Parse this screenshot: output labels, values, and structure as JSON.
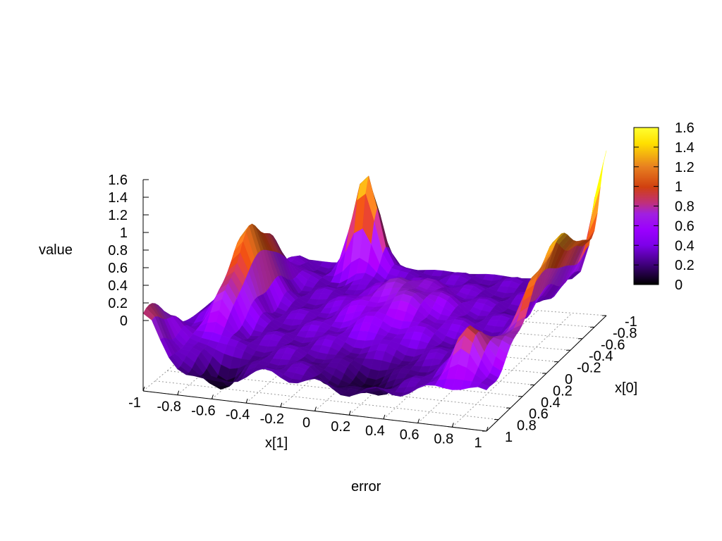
{
  "chart_data": {
    "type": "surface3d",
    "title": "error",
    "xlabel": "x[1]",
    "ylabel": "x[0]",
    "zlabel": "value",
    "x_ticks": [
      "-1",
      "-0.8",
      "-0.6",
      "-0.4",
      "-0.2",
      "0",
      "0.2",
      "0.4",
      "0.6",
      "0.8",
      "1"
    ],
    "y_ticks": [
      "-1",
      "-0.8",
      "-0.6",
      "-0.4",
      "-0.2",
      "0",
      "0.2",
      "0.4",
      "0.6",
      "0.8",
      "1"
    ],
    "z_ticks": [
      "1.6",
      "1.4",
      "1.2",
      "1",
      "0.8",
      "0.6",
      "0.4",
      "0.2",
      "0"
    ],
    "xlim": [
      -1,
      1
    ],
    "ylim": [
      -1,
      1
    ],
    "zlim": [
      0,
      1.6
    ],
    "colorbar": {
      "ticks": [
        "1.6",
        "1.4",
        "1.2",
        "1",
        "0.8",
        "0.6",
        "0.4",
        "0.2",
        "0"
      ],
      "range": [
        0,
        1.6
      ],
      "palette": [
        "#000000",
        "#3b0074",
        "#7d00e8",
        "#9b00ff",
        "#a020e0",
        "#c0307a",
        "#d04010",
        "#e88020",
        "#ffe000",
        "#ffff30"
      ]
    },
    "grid": true
  }
}
